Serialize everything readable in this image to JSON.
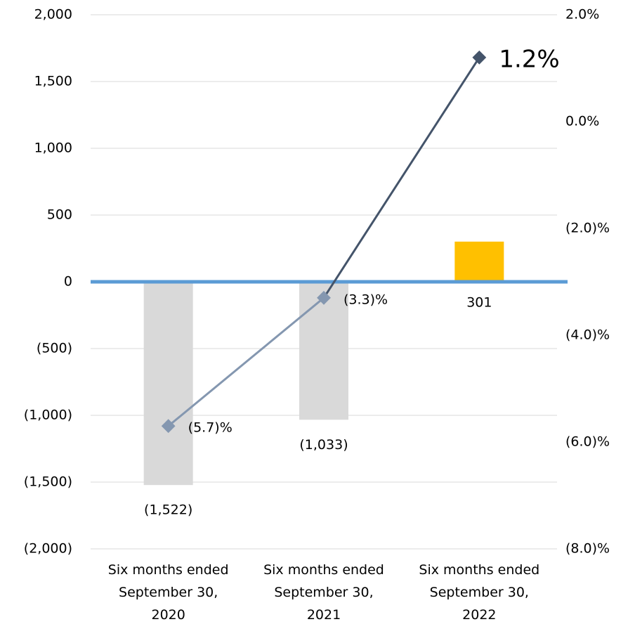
{
  "chart_data": {
    "type": "bar_line",
    "categories": [
      "Six months ended\nSeptember 30,\n2020",
      "Six months ended\nSeptember 30,\n2021",
      "Six months ended\nSeptember 30,\n2022"
    ],
    "series": [
      {
        "type": "bar",
        "colors": [
          "#d9d9d9",
          "#d9d9d9",
          "#ffc000"
        ],
        "values": [
          -1522,
          -1033,
          301
        ],
        "value_labels": [
          "(1,522)",
          "(1,033)",
          "301"
        ]
      },
      {
        "type": "line",
        "axis": "y2",
        "colors": [
          "#8497b0",
          "#8497b0",
          "#44546a"
        ],
        "values": [
          -5.7,
          -3.3,
          1.2
        ],
        "value_labels": [
          "(5.7)%",
          "(3.3)%",
          "1.2%"
        ]
      }
    ],
    "ylim": [
      -2000,
      2000
    ],
    "yticks": [
      {
        "value": -2000,
        "label": "(2,000)"
      },
      {
        "value": -1500,
        "label": "(1,500)"
      },
      {
        "value": -1000,
        "label": "(1,000)"
      },
      {
        "value": -500,
        "label": "(500)"
      },
      0,
      500,
      {
        "value": 1000,
        "label": "1,000"
      },
      {
        "value": 1500,
        "label": "1,500"
      },
      {
        "value": 2000,
        "label": "2,000"
      }
    ],
    "y2lim": [
      -8,
      2
    ],
    "y2ticks": [
      {
        "value": -8,
        "label": "(8.0)%"
      },
      {
        "value": -6,
        "label": "(6.0)%"
      },
      {
        "value": -4,
        "label": "(4.0)%"
      },
      {
        "value": -2,
        "label": "(2.0)%"
      },
      {
        "value": 0,
        "label": "0.0%"
      },
      {
        "value": 2,
        "label": "2.0%"
      }
    ],
    "grid": true,
    "zero_line_color": "#5b9bd5"
  }
}
